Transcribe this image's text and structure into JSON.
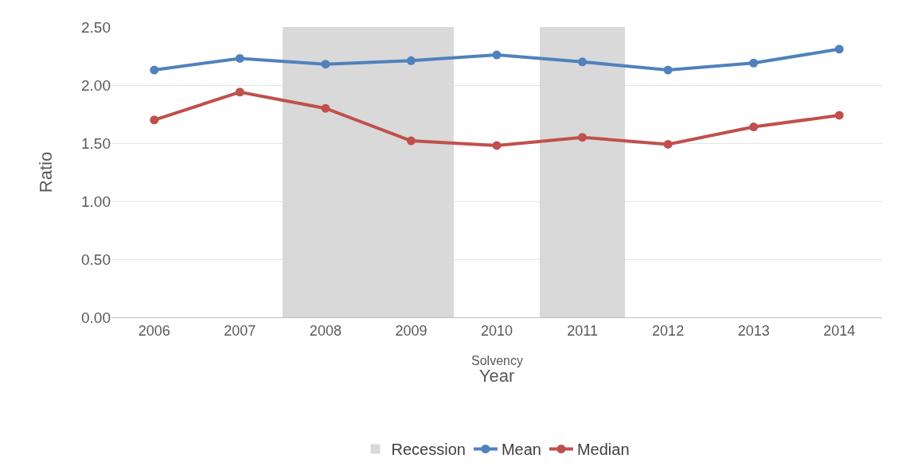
{
  "chart_data": {
    "type": "line",
    "xlabel": "Year",
    "ylabel": "Ratio",
    "categories": [
      "2006",
      "2007",
      "2008",
      "2009",
      "2010",
      "2011",
      "2012",
      "2013",
      "2014"
    ],
    "series": [
      {
        "name": "Recession",
        "type": "bar",
        "color": "#d9d9d9",
        "values": [
          null,
          null,
          2.5,
          2.5,
          null,
          2.5,
          null,
          null,
          null
        ]
      },
      {
        "name": "Mean",
        "color": "#4f81bd",
        "values": [
          2.13,
          2.23,
          2.18,
          2.21,
          2.26,
          2.2,
          2.13,
          2.19,
          2.31
        ]
      },
      {
        "name": "Median",
        "color": "#c0504d",
        "values": [
          1.7,
          1.94,
          1.8,
          1.52,
          1.48,
          1.55,
          1.49,
          1.64,
          1.74
        ]
      }
    ],
    "annotations": [
      "Solvency"
    ],
    "ylim": [
      0,
      2.5
    ],
    "yticks": [
      {
        "value": 0,
        "label": "0.00"
      },
      {
        "value": 0.5,
        "label": "0.50"
      },
      {
        "value": 1,
        "label": "1.00"
      },
      {
        "value": 1.5,
        "label": "1.50"
      },
      {
        "value": 2,
        "label": "2.00"
      },
      {
        "value": 2.5,
        "label": "2.50"
      }
    ],
    "grid": "y",
    "legend": "bottom",
    "marker": "circle",
    "line_style": "solid"
  }
}
